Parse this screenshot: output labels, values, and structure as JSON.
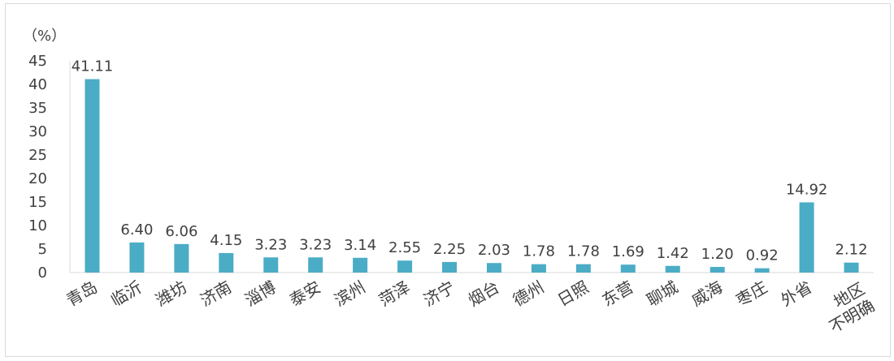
{
  "chart_data": {
    "type": "bar",
    "ylabel": "（%）",
    "ylim": [
      0,
      45
    ],
    "yticks": [
      0,
      5,
      10,
      15,
      20,
      25,
      30,
      35,
      40,
      45
    ],
    "grid": false,
    "bar_color": "#4bacc6",
    "categories": [
      "青岛",
      "临沂",
      "潍坊",
      "济南",
      "淄博",
      "泰安",
      "滨州",
      "菏泽",
      "济宁",
      "烟台",
      "德州",
      "日照",
      "东营",
      "聊城",
      "威海",
      "枣庄",
      "外省",
      "地区不明确"
    ],
    "values": [
      41.11,
      6.4,
      6.06,
      4.15,
      3.23,
      3.23,
      3.14,
      2.55,
      2.25,
      2.03,
      1.78,
      1.78,
      1.69,
      1.42,
      1.2,
      0.92,
      14.92,
      2.12
    ],
    "data_labels": [
      "41.11",
      "6.40",
      "6.06",
      "4.15",
      "3.23",
      "3.23",
      "3.14",
      "2.55",
      "2.25",
      "2.03",
      "1.78",
      "1.78",
      "1.69",
      "1.42",
      "1.20",
      "0.92",
      "14.92",
      "2.12"
    ]
  }
}
